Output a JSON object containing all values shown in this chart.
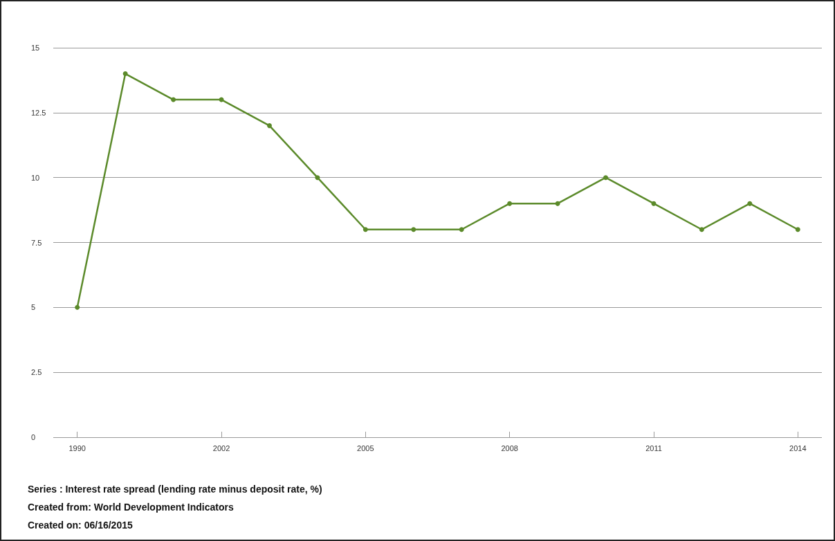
{
  "chart_data": {
    "type": "line",
    "categories": [
      "1990",
      null,
      null,
      "2002",
      null,
      null,
      "2005",
      null,
      null,
      "2008",
      null,
      null,
      "2011",
      null,
      null,
      "2014"
    ],
    "series": [
      {
        "color": "#5b8a2a",
        "values": [
          5,
          14,
          13,
          13,
          12,
          10,
          8,
          8,
          8,
          9,
          9,
          10,
          9,
          8,
          9,
          8
        ]
      }
    ],
    "ylim": [
      0,
      15
    ],
    "yticks": [
      0,
      2.5,
      5,
      7.5,
      10,
      12.5,
      15
    ],
    "grid": "y",
    "marker": "circle",
    "line_style": "solid",
    "annotations": [
      "Series : Interest rate spread (lending rate minus deposit rate, %)",
      "Created from: World Development Indicators",
      "Created on: 06/16/2015"
    ]
  }
}
